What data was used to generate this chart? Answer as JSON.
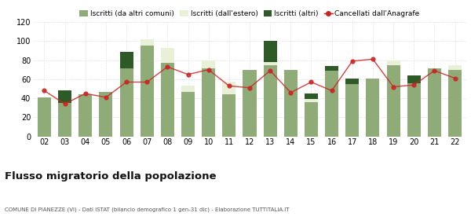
{
  "years": [
    "02",
    "03",
    "04",
    "05",
    "06",
    "07",
    "08",
    "09",
    "10",
    "11",
    "12",
    "13",
    "14",
    "15",
    "16",
    "17",
    "18",
    "19",
    "20",
    "21",
    "22"
  ],
  "iscritti_comuni": [
    41,
    35,
    44,
    47,
    71,
    95,
    77,
    47,
    71,
    44,
    70,
    75,
    70,
    36,
    69,
    55,
    61,
    75,
    56,
    71,
    70
  ],
  "iscritti_estero": [
    0,
    0,
    0,
    0,
    0,
    7,
    16,
    6,
    9,
    13,
    0,
    3,
    0,
    3,
    0,
    0,
    0,
    5,
    0,
    0,
    5
  ],
  "iscritti_altri": [
    0,
    13,
    0,
    0,
    18,
    0,
    0,
    0,
    0,
    0,
    0,
    22,
    0,
    6,
    5,
    6,
    0,
    0,
    8,
    0,
    0
  ],
  "cancellati": [
    48,
    34,
    45,
    41,
    57,
    57,
    73,
    65,
    70,
    53,
    51,
    69,
    46,
    57,
    48,
    79,
    81,
    52,
    54,
    69,
    61
  ],
  "color_comuni": "#8fac78",
  "color_estero": "#e8f0d8",
  "color_altri": "#2d5a27",
  "color_cancellati": "#cc2222",
  "ylim": [
    0,
    120
  ],
  "yticks": [
    0,
    20,
    40,
    60,
    80,
    100,
    120
  ],
  "title": "Flusso migratorio della popolazione",
  "subtitle": "COMUNE DI PIANEZZE (VI) - Dati ISTAT (bilancio demografico 1 gen-31 dic) - Elaborazione TUTTITALIA.IT",
  "legend_labels": [
    "Iscritti (da altri comuni)",
    "Iscritti (dall'estero)",
    "Iscritti (altri)",
    "Cancellati dall'Anagrafe"
  ],
  "bg_color": "#ffffff",
  "grid_color": "#cccccc"
}
